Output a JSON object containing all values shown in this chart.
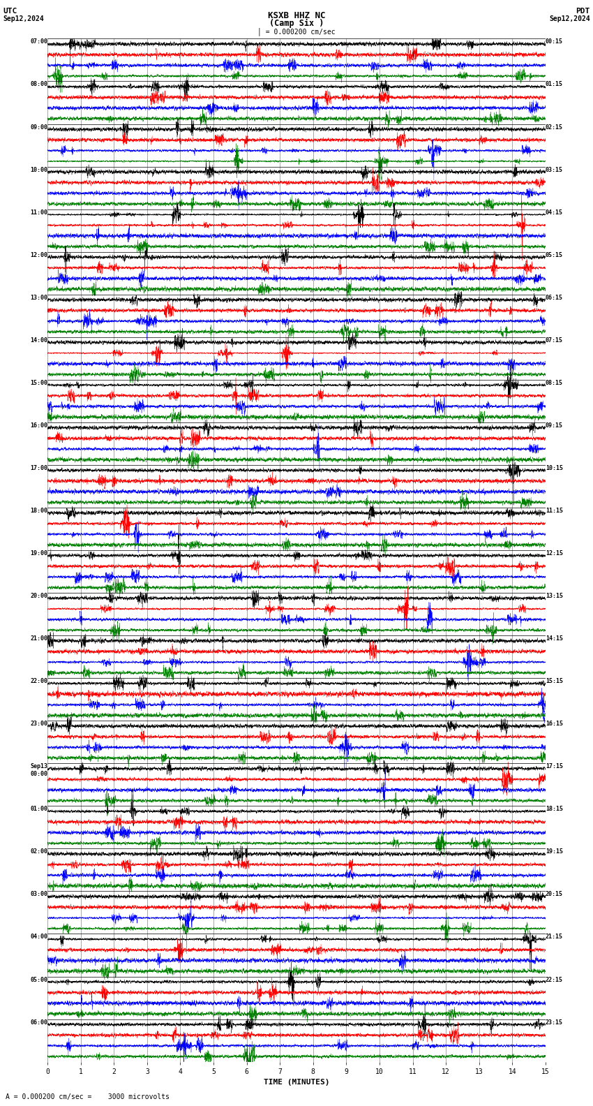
{
  "title_line1": "KSXB HHZ NC",
  "title_line2": "(Camp Six )",
  "scale_text": "= 0.000200 cm/sec",
  "utc_label": "UTC",
  "date_left": "Sep12,2024",
  "date_right": "Sep12,2024",
  "pdt_label": "PDT",
  "footer_text": "A = 0.000200 cm/sec =    3000 microvolts",
  "xlabel": "TIME (MINUTES)",
  "left_times": [
    "07:00",
    "08:00",
    "09:00",
    "10:00",
    "11:00",
    "12:00",
    "13:00",
    "14:00",
    "15:00",
    "16:00",
    "17:00",
    "18:00",
    "19:00",
    "20:00",
    "21:00",
    "22:00",
    "23:00",
    "Sep13\n00:00",
    "01:00",
    "02:00",
    "03:00",
    "04:00",
    "05:00",
    "06:00"
  ],
  "right_times": [
    "00:15",
    "01:15",
    "02:15",
    "03:15",
    "04:15",
    "05:15",
    "06:15",
    "07:15",
    "08:15",
    "09:15",
    "10:15",
    "11:15",
    "12:15",
    "13:15",
    "14:15",
    "15:15",
    "16:15",
    "17:15",
    "18:15",
    "19:15",
    "20:15",
    "21:15",
    "22:15",
    "23:15"
  ],
  "n_rows": 24,
  "traces_per_row": 4,
  "colors": [
    "black",
    "red",
    "blue",
    "green"
  ],
  "bg_color": "white",
  "xlim": [
    0,
    15
  ],
  "xticks": [
    0,
    1,
    2,
    3,
    4,
    5,
    6,
    7,
    8,
    9,
    10,
    11,
    12,
    13,
    14,
    15
  ],
  "seed": 42,
  "n_points": 9000,
  "trace_amplitude": 0.38,
  "linewidth": 0.25
}
